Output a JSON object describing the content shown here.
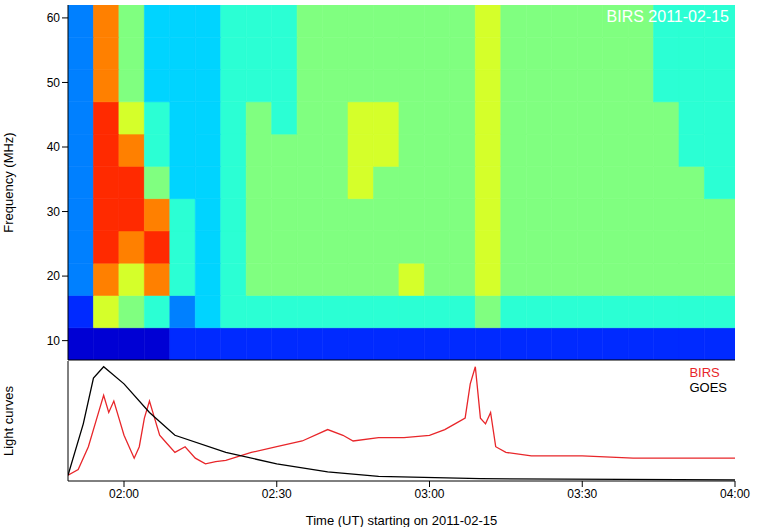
{
  "chart_data": [
    {
      "type": "heatmap",
      "title": "BIRS 2011-02-15",
      "y_label": "Frequency (MHz)",
      "xlim": [
        109,
        240
      ],
      "xticks": [
        {
          "value": 120,
          "label": "02:00"
        },
        {
          "value": 150,
          "label": "02:30"
        },
        {
          "value": 180,
          "label": "03:00"
        },
        {
          "value": 210,
          "label": "03:30"
        },
        {
          "value": 240,
          "label": "04:00"
        }
      ],
      "ylim": [
        7,
        62
      ],
      "yticks": [
        10,
        20,
        30,
        40,
        50,
        60
      ],
      "tick_labels": "y",
      "time_edges": [
        109,
        114,
        119,
        124,
        129,
        134,
        139,
        144,
        149,
        154,
        159,
        164,
        169,
        174,
        179,
        184,
        189,
        194,
        199,
        204,
        209,
        214,
        219,
        224,
        229,
        234,
        240
      ],
      "freq_edges": [
        7,
        12,
        17,
        22,
        27,
        32,
        37,
        42,
        47,
        52,
        57,
        62
      ],
      "zlim": [
        0,
        12
      ],
      "cells": [
        [
          1,
          1,
          1,
          1,
          2,
          2,
          2,
          2,
          2,
          2,
          2,
          2,
          2,
          2,
          2,
          2,
          2,
          2,
          2,
          2,
          2,
          2,
          2,
          2,
          2,
          2
        ],
        [
          2,
          7,
          6,
          5,
          3,
          4,
          5,
          5,
          5,
          5,
          5,
          5,
          5,
          5,
          5,
          5,
          6,
          5,
          5,
          5,
          5,
          5,
          5,
          5,
          5,
          5
        ],
        [
          3,
          9,
          7,
          9,
          5,
          4,
          5,
          6,
          6,
          6,
          6,
          6,
          6,
          7,
          6,
          6,
          7,
          6,
          6,
          6,
          6,
          6,
          6,
          6,
          6,
          6
        ],
        [
          3,
          10,
          9,
          10,
          5,
          4,
          5,
          6,
          6,
          6,
          6,
          6,
          6,
          6,
          6,
          6,
          7,
          6,
          6,
          6,
          6,
          6,
          6,
          6,
          6,
          6
        ],
        [
          3,
          10,
          10,
          9,
          5,
          4,
          5,
          6,
          6,
          6,
          6,
          6,
          6,
          6,
          6,
          6,
          7,
          6,
          6,
          6,
          6,
          6,
          6,
          6,
          6,
          6
        ],
        [
          3,
          10,
          10,
          6,
          4,
          4,
          5,
          6,
          6,
          6,
          6,
          7,
          6,
          6,
          6,
          6,
          7,
          6,
          6,
          6,
          6,
          6,
          6,
          6,
          6,
          5
        ],
        [
          3,
          10,
          9,
          5,
          4,
          4,
          5,
          6,
          6,
          6,
          6,
          7,
          7,
          6,
          6,
          6,
          7,
          6,
          6,
          6,
          6,
          6,
          6,
          6,
          5,
          5
        ],
        [
          3,
          10,
          7,
          5,
          4,
          4,
          5,
          6,
          5,
          6,
          6,
          7,
          7,
          6,
          6,
          6,
          7,
          6,
          6,
          6,
          6,
          6,
          6,
          6,
          5,
          5
        ],
        [
          3,
          9,
          6,
          4,
          4,
          4,
          5,
          5,
          5,
          6,
          6,
          6,
          6,
          6,
          6,
          6,
          7,
          6,
          6,
          6,
          6,
          6,
          6,
          5,
          5,
          5
        ],
        [
          3,
          9,
          6,
          4,
          4,
          4,
          5,
          5,
          5,
          6,
          6,
          6,
          6,
          6,
          6,
          6,
          7,
          6,
          6,
          6,
          6,
          6,
          6,
          5,
          5,
          5
        ],
        [
          3,
          9,
          6,
          4,
          4,
          4,
          5,
          5,
          5,
          6,
          6,
          6,
          6,
          6,
          6,
          6,
          7,
          6,
          6,
          6,
          6,
          6,
          6,
          5,
          5,
          5
        ]
      ]
    },
    {
      "type": "line",
      "x_label": "Time (UT) starting on 2011-02-15",
      "y_label": "Light curves",
      "xlim": [
        109,
        240
      ],
      "xticks": [
        {
          "value": 120,
          "label": "02:00"
        },
        {
          "value": 150,
          "label": "02:30"
        },
        {
          "value": 180,
          "label": "03:00"
        },
        {
          "value": 210,
          "label": "03:30"
        },
        {
          "value": 240,
          "label": "04:00"
        }
      ],
      "ylim": [
        0,
        1.05
      ],
      "tick_labels": "x",
      "legend": "top-right",
      "series": [
        {
          "name": "BIRS",
          "color": "#e8262a",
          "x": [
            109,
            111,
            113,
            115,
            116,
            117,
            118,
            119,
            120,
            121,
            122,
            123,
            124,
            125,
            126,
            127,
            128,
            130,
            132,
            134,
            136,
            138,
            140,
            145,
            150,
            155,
            160,
            163,
            165,
            170,
            175,
            180,
            183,
            185,
            187,
            188,
            189,
            190,
            191,
            192,
            193,
            195,
            200,
            210,
            220,
            230,
            240
          ],
          "values": [
            0.05,
            0.1,
            0.3,
            0.6,
            0.75,
            0.6,
            0.7,
            0.55,
            0.4,
            0.3,
            0.2,
            0.3,
            0.55,
            0.7,
            0.55,
            0.4,
            0.35,
            0.25,
            0.3,
            0.2,
            0.15,
            0.17,
            0.18,
            0.25,
            0.3,
            0.35,
            0.45,
            0.4,
            0.35,
            0.38,
            0.38,
            0.4,
            0.45,
            0.5,
            0.55,
            0.85,
            1.0,
            0.55,
            0.5,
            0.6,
            0.3,
            0.25,
            0.22,
            0.22,
            0.2,
            0.2,
            0.2
          ]
        },
        {
          "name": "GOES",
          "color": "#000000",
          "x": [
            109,
            112,
            114,
            116,
            120,
            125,
            130,
            140,
            150,
            160,
            170,
            190,
            240
          ],
          "values": [
            0.05,
            0.5,
            0.9,
            1.0,
            0.85,
            0.6,
            0.4,
            0.25,
            0.15,
            0.08,
            0.04,
            0.02,
            0.01
          ]
        }
      ]
    }
  ]
}
